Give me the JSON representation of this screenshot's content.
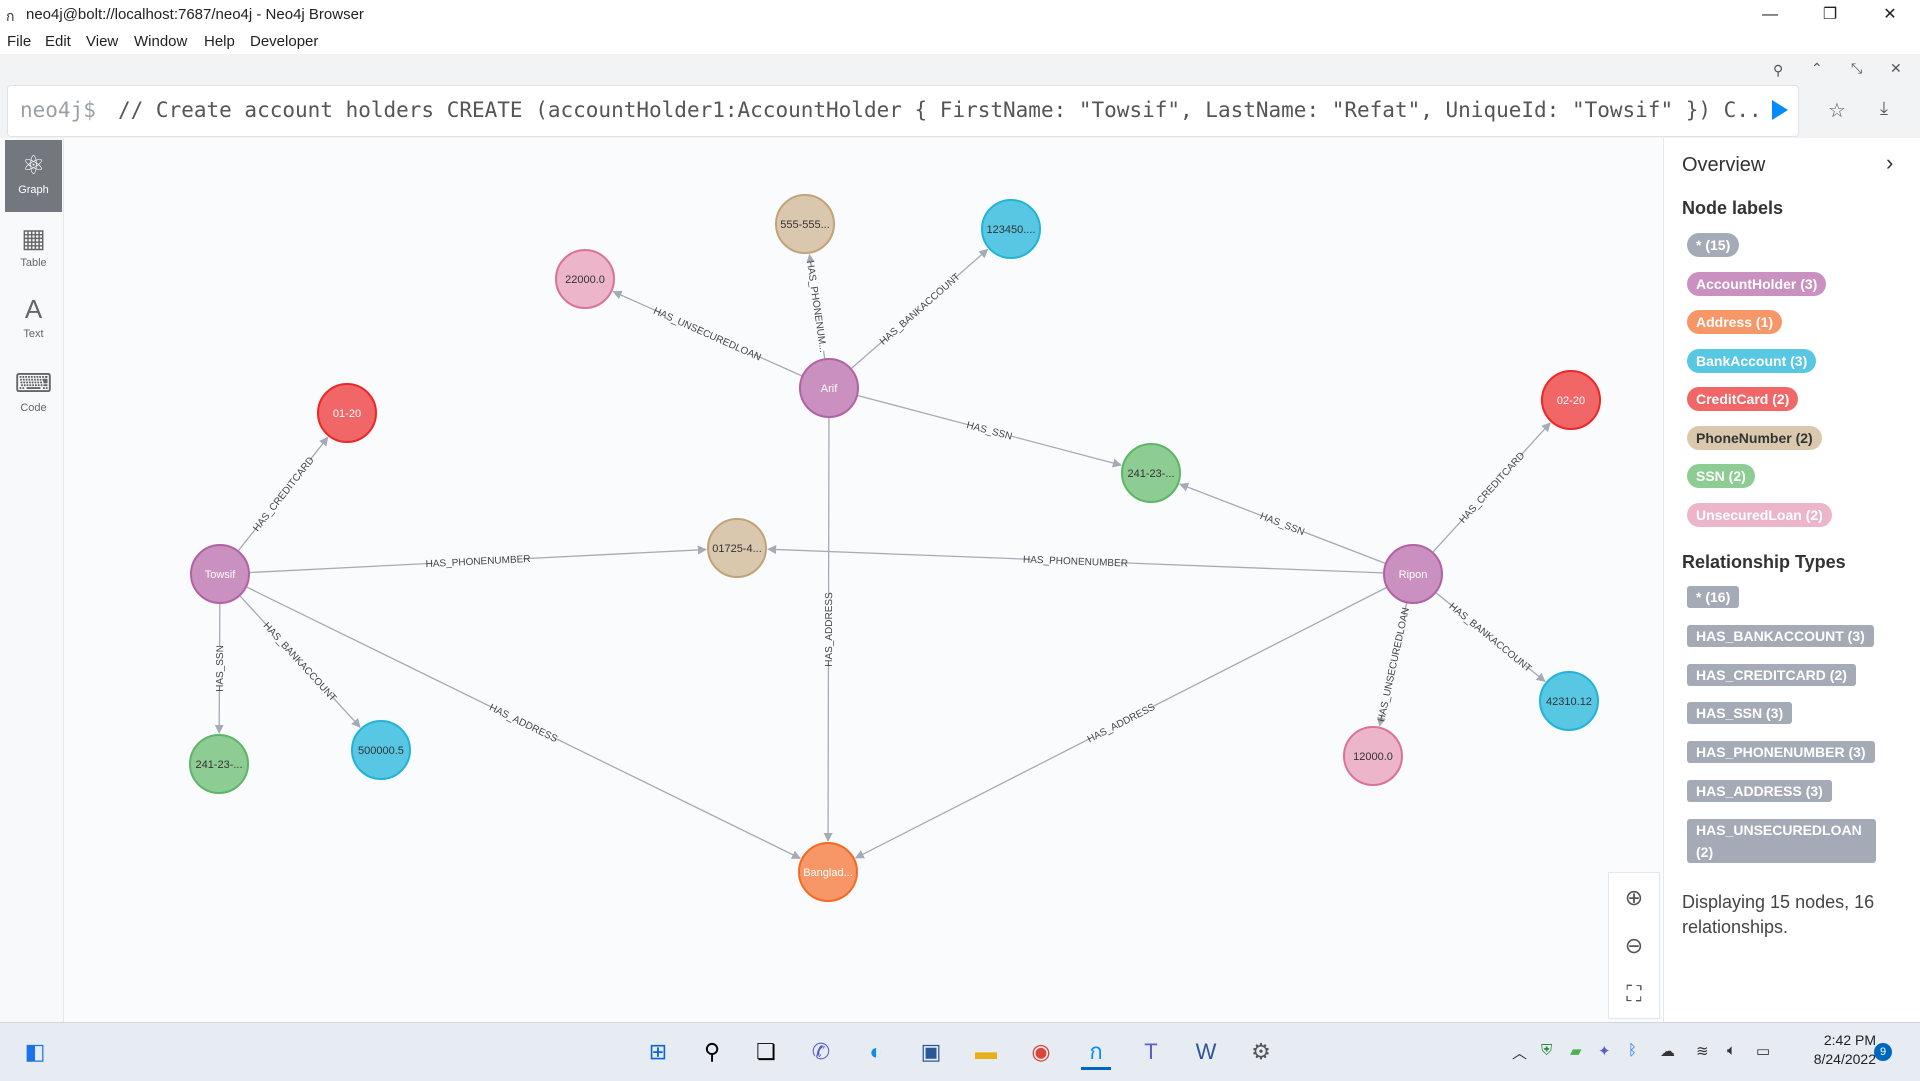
{
  "window": {
    "title": "neo4j@bolt://localhost:7687/neo4j - Neo4j Browser",
    "controls": [
      "minimize-icon",
      "restore-icon",
      "close-icon"
    ]
  },
  "menu": [
    "File",
    "Edit",
    "View",
    "Window",
    "Help",
    "Developer"
  ],
  "editor": {
    "prompt": "neo4j$",
    "query": "// Create account holders CREATE (accountHolder1:AccountHolder { FirstName: \"Towsif\", LastName: \"Refat\", UniqueId: \"Towsif\" }) C..."
  },
  "sidebar": [
    {
      "label": "Graph",
      "icon": "graph-icon",
      "active": true
    },
    {
      "label": "Table",
      "icon": "table-icon",
      "active": false
    },
    {
      "label": "Text",
      "icon": "text-icon",
      "active": false
    },
    {
      "label": "Code",
      "icon": "code-icon",
      "active": false
    }
  ],
  "colors": {
    "AccountHolder": "#c990c0",
    "Address": "#f79767",
    "BankAccount": "#57c7e3",
    "CreditCard": "#f16667",
    "PhoneNumber": "#d9c8ae",
    "SSN": "#8dcc93",
    "UnsecuredLoan": "#ecb5c9",
    "all": "#a5abb6"
  },
  "graph": {
    "nodes": [
      {
        "id": "towsif",
        "label": "Towsif",
        "type": "AccountHolder"
      },
      {
        "id": "arif",
        "label": "Arif",
        "type": "AccountHolder"
      },
      {
        "id": "ripon",
        "label": "Ripon",
        "type": "AccountHolder"
      },
      {
        "id": "bd",
        "label": "Banglad...",
        "type": "Address"
      },
      {
        "id": "phone1",
        "label": "01725-4...",
        "type": "PhoneNumber"
      },
      {
        "id": "phone2",
        "label": "555-555...",
        "type": "PhoneNumber"
      },
      {
        "id": "cc1",
        "label": "01-20",
        "type": "CreditCard"
      },
      {
        "id": "cc2",
        "label": "02-20",
        "type": "CreditCard"
      },
      {
        "id": "ssn1",
        "label": "241-23-...",
        "type": "SSN"
      },
      {
        "id": "ssn2",
        "label": "241-23-...",
        "type": "SSN"
      },
      {
        "id": "ba1",
        "label": "500000.5",
        "type": "BankAccount"
      },
      {
        "id": "ba2",
        "label": "123450....",
        "type": "BankAccount"
      },
      {
        "id": "ba3",
        "label": "42310.12",
        "type": "BankAccount"
      },
      {
        "id": "loan1",
        "label": "22000.0",
        "type": "UnsecuredLoan"
      },
      {
        "id": "loan2",
        "label": "12000.0",
        "type": "UnsecuredLoan"
      }
    ],
    "edges": [
      {
        "from": "towsif",
        "to": "cc1",
        "label": "HAS_CREDITCARD"
      },
      {
        "from": "towsif",
        "to": "phone1",
        "label": "HAS_PHONENUMBER"
      },
      {
        "from": "towsif",
        "to": "ssn1",
        "label": "HAS_SSN"
      },
      {
        "from": "towsif",
        "to": "ba1",
        "label": "HAS_BANKACCOUNT"
      },
      {
        "from": "towsif",
        "to": "bd",
        "label": "HAS_ADDRESS"
      },
      {
        "from": "arif",
        "to": "loan1",
        "label": "HAS_UNSECUREDLOAN"
      },
      {
        "from": "arif",
        "to": "phone2",
        "label": "HAS_PHONENUM..."
      },
      {
        "from": "arif",
        "to": "ba2",
        "label": "HAS_BANKACCOUNT"
      },
      {
        "from": "arif",
        "to": "ssn2",
        "label": "HAS_SSN"
      },
      {
        "from": "arif",
        "to": "bd",
        "label": "HAS_ADDRESS"
      },
      {
        "from": "ripon",
        "to": "cc2",
        "label": "HAS_CREDITCARD"
      },
      {
        "from": "ripon",
        "to": "ssn2",
        "label": "HAS_SSN"
      },
      {
        "from": "ripon",
        "to": "phone1",
        "label": "HAS_PHONENUMBER"
      },
      {
        "from": "ripon",
        "to": "ba3",
        "label": "HAS_BANKACCOUNT"
      },
      {
        "from": "ripon",
        "to": "loan2",
        "label": "HAS_UNSECUREDLOAN"
      },
      {
        "from": "ripon",
        "to": "bd",
        "label": "HAS_ADDRESS"
      }
    ]
  },
  "overview": {
    "title": "Overview",
    "node_labels_heading": "Node labels",
    "node_labels": [
      {
        "text": "* (15)",
        "type": "all"
      },
      {
        "text": "AccountHolder (3)",
        "type": "AccountHolder"
      },
      {
        "text": "Address (1)",
        "type": "Address"
      },
      {
        "text": "BankAccount (3)",
        "type": "BankAccount"
      },
      {
        "text": "CreditCard (2)",
        "type": "CreditCard"
      },
      {
        "text": "PhoneNumber (2)",
        "type": "PhoneNumber"
      },
      {
        "text": "SSN (2)",
        "type": "SSN"
      },
      {
        "text": "UnsecuredLoan (2)",
        "type": "UnsecuredLoan"
      }
    ],
    "rel_types_heading": "Relationship Types",
    "rel_types": [
      "* (16)",
      "HAS_BANKACCOUNT (3)",
      "HAS_CREDITCARD (2)",
      "HAS_SSN (3)",
      "HAS_PHONENUMBER (3)",
      "HAS_ADDRESS (3)",
      "HAS_UNSECUREDLOAN (2)"
    ],
    "display_text": "Displaying 15 nodes, 16 relationships."
  },
  "taskbar": {
    "time": "2:42 PM",
    "date": "8/24/2022",
    "notification_count": "9"
  }
}
